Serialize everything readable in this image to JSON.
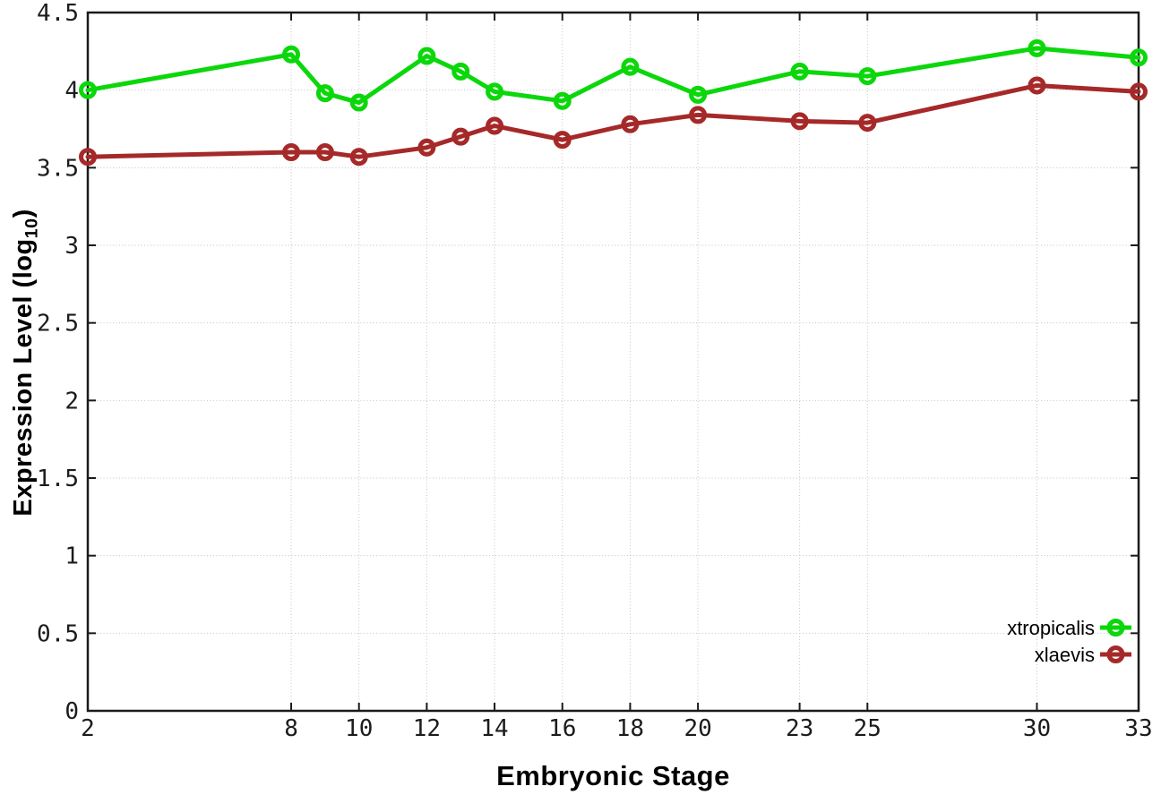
{
  "figure": {
    "xlabel": "Embryonic Stage",
    "ylabel_prefix": "Expression Level (log",
    "ylabel_sub": "10",
    "ylabel_suffix": ")"
  },
  "style": {
    "background": "#ffffff",
    "grid_color": "#c4c4c4",
    "border_color": "#1a1a1a",
    "tick_text_color": "#1c1c1c"
  },
  "chart_data": {
    "type": "line",
    "title": "",
    "xlabel": "Embryonic Stage",
    "ylabel": "Expression Level (log10)",
    "xlim": [
      2,
      33
    ],
    "ylim": [
      0,
      4.5
    ],
    "grid": true,
    "legend_position": "bottom-right",
    "marker": "open-circle",
    "x": [
      2,
      8,
      9,
      10,
      12,
      13,
      14,
      16,
      18,
      20,
      23,
      25,
      30,
      33
    ],
    "x_ticks": [
      2,
      8,
      10,
      12,
      14,
      16,
      18,
      20,
      23,
      25,
      30,
      33
    ],
    "x_tick_labels": [
      "2",
      "8",
      "10",
      "12",
      "14",
      "16",
      "18",
      "20",
      "23",
      "25",
      "30",
      "33"
    ],
    "y_ticks": [
      0,
      0.5,
      1,
      1.5,
      2,
      2.5,
      3,
      3.5,
      4,
      4.5
    ],
    "y_tick_labels": [
      "0",
      "0.5",
      "1",
      "1.5",
      "2",
      "2.5",
      "3",
      "3.5",
      "4",
      "4.5"
    ],
    "series": [
      {
        "name": "xtropicalis",
        "color": "#0bd70b",
        "values": [
          4.0,
          4.23,
          3.98,
          3.92,
          4.22,
          4.12,
          3.99,
          3.93,
          4.15,
          3.97,
          4.12,
          4.09,
          4.27,
          4.21
        ]
      },
      {
        "name": "xlaevis",
        "color": "#a62929",
        "values": [
          3.57,
          3.6,
          3.6,
          3.57,
          3.63,
          3.7,
          3.77,
          3.68,
          3.78,
          3.84,
          3.8,
          3.79,
          4.03,
          3.99
        ]
      }
    ]
  }
}
